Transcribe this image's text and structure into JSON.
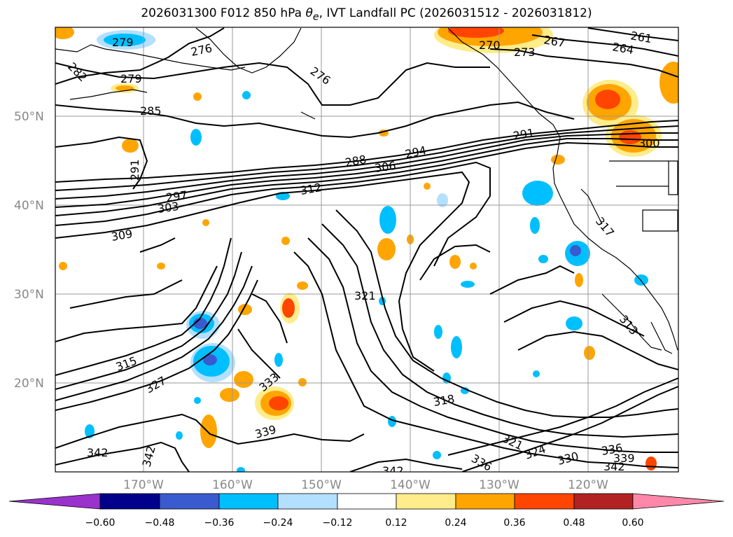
{
  "title": {
    "prefix": "2026031300 F012 850 hPa ",
    "theta": "θ",
    "theta_sub": "e",
    "suffix": ", IVT Landfall PC (2026031512 - 2026031812)"
  },
  "lat_labels": [
    "50°N",
    "40°N",
    "30°N",
    "20°N"
  ],
  "lon_labels": [
    "170°W",
    "160°W",
    "150°W",
    "140°W",
    "130°W",
    "120°W"
  ],
  "contour_labels": [
    "279",
    "276",
    "282",
    "279",
    "276",
    "285",
    "270",
    "273",
    "267",
    "261",
    "264",
    "291",
    "291",
    "294",
    "288",
    "306",
    "300",
    "297",
    "303",
    "312",
    "309",
    "317",
    "321",
    "315",
    "327",
    "333",
    "318",
    "339",
    "342",
    "342",
    "321",
    "324",
    "336",
    "330",
    "336",
    "339",
    "342",
    "342",
    "313"
  ],
  "colorbar": {
    "colors": [
      "#9933cc",
      "#00008b",
      "#3a5bcf",
      "#00bfff",
      "#b3e0ff",
      "#ffffff",
      "#ffec8b",
      "#ffa500",
      "#ff4500",
      "#b22222",
      "#ff88aa"
    ],
    "tick_labels": [
      "−0.60",
      "−0.48",
      "−0.36",
      "−0.24",
      "−0.12",
      "0.12",
      "0.24",
      "0.36",
      "0.48",
      "0.60"
    ]
  }
}
